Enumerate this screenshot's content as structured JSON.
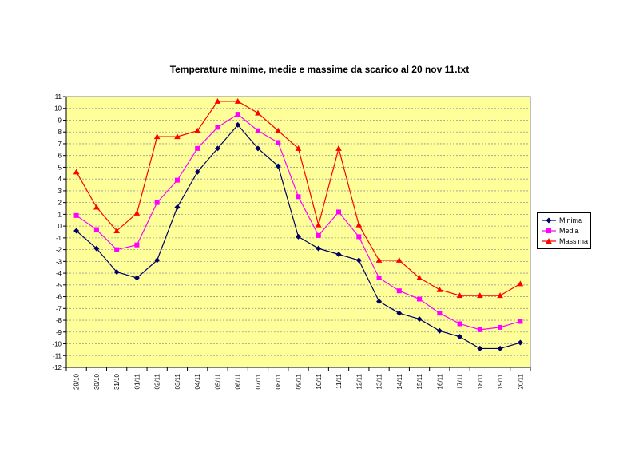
{
  "chart_data": {
    "type": "line",
    "title": "Temperature minime, medie e massime da scarico al 20 nov 11.txt",
    "xlabel": "",
    "ylabel": "",
    "ylim": [
      -12,
      11
    ],
    "yticks": [
      11,
      10,
      9,
      8,
      7,
      6,
      5,
      4,
      3,
      2,
      1,
      0,
      -1,
      -2,
      -3,
      -4,
      -5,
      -6,
      -7,
      -8,
      -9,
      -10,
      -11,
      -12
    ],
    "grid": true,
    "plot_background": "#ffff99",
    "grid_color": "#999999",
    "legend_position": "right",
    "categories": [
      "29/10",
      "30/10",
      "31/10",
      "01/11",
      "02/11",
      "03/11",
      "04/11",
      "05/11",
      "06/11",
      "07/11",
      "08/11",
      "09/11",
      "10/11",
      "11/11",
      "12/11",
      "13/11",
      "14/11",
      "15/11",
      "16/11",
      "17/11",
      "18/11",
      "19/11",
      "20/11"
    ],
    "series": [
      {
        "name": "Minima",
        "color": "#000066",
        "marker": "diamond",
        "values": [
          -0.4,
          -1.9,
          -3.9,
          -4.4,
          -2.9,
          1.6,
          4.6,
          6.6,
          8.6,
          6.6,
          5.1,
          -0.9,
          -1.9,
          -2.4,
          -2.9,
          -6.4,
          -7.4,
          -7.9,
          -8.9,
          -9.4,
          -10.4,
          -10.4,
          -9.9
        ]
      },
      {
        "name": "Media",
        "color": "#ff00ff",
        "marker": "square",
        "values": [
          0.9,
          -0.3,
          -2.0,
          -1.6,
          2.0,
          3.9,
          6.6,
          8.4,
          9.5,
          8.1,
          7.1,
          2.5,
          -0.8,
          1.2,
          -0.9,
          -4.4,
          -5.5,
          -6.2,
          -7.4,
          -8.3,
          -8.8,
          -8.6,
          -8.1
        ]
      },
      {
        "name": "Massima",
        "color": "#ff0000",
        "marker": "triangle",
        "values": [
          4.6,
          1.6,
          -0.4,
          1.1,
          7.6,
          7.6,
          8.1,
          10.6,
          10.6,
          9.6,
          8.1,
          6.6,
          0.1,
          6.6,
          0.1,
          -2.9,
          -2.9,
          -4.4,
          -5.4,
          -5.9,
          -5.9,
          -5.9,
          -4.9
        ]
      }
    ]
  }
}
